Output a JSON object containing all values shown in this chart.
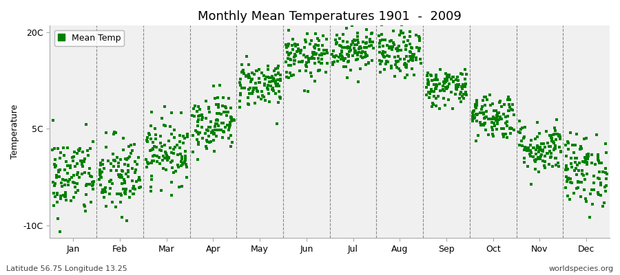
{
  "title": "Monthly Mean Temperatures 1901  -  2009",
  "ylabel": "Temperature",
  "xlabel_months": [
    "Jan",
    "Feb",
    "Mar",
    "Apr",
    "May",
    "Jun",
    "Jul",
    "Aug",
    "Sep",
    "Oct",
    "Nov",
    "Dec"
  ],
  "yticks": [
    -10,
    5,
    20
  ],
  "ytick_labels": [
    "-10C",
    "5C",
    "20C"
  ],
  "ylim": [
    -12,
    21
  ],
  "legend_label": "Mean Temp",
  "marker_color": "#008000",
  "marker_size": 3,
  "bg_color": "#f0f0f0",
  "subtitle_left": "Latitude 56.75 Longitude 13.25",
  "subtitle_right": "worldspecies.org",
  "monthly_means": [
    -2.5,
    -2.5,
    1.5,
    6.0,
    12.0,
    16.0,
    17.5,
    16.5,
    11.5,
    7.0,
    2.0,
    -1.5
  ],
  "monthly_stds": [
    3.2,
    3.2,
    2.5,
    2.2,
    1.8,
    1.8,
    1.8,
    1.8,
    1.5,
    1.8,
    2.0,
    2.8
  ],
  "n_years": 109,
  "random_seed": 42
}
